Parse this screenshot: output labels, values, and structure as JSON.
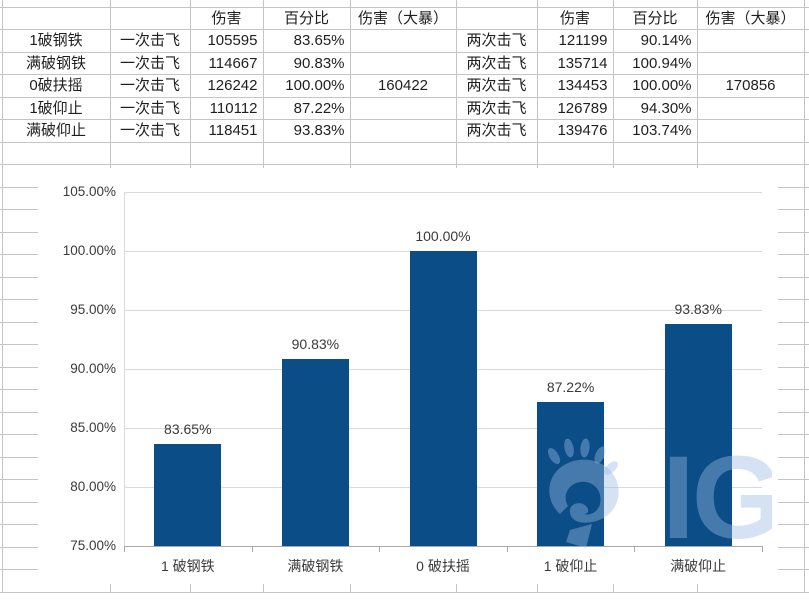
{
  "table": {
    "column_headers": [
      "",
      "",
      "伤害",
      "百分比",
      "伤害（大暴）",
      "",
      "伤害",
      "百分比",
      "伤害（大暴）"
    ],
    "rows": [
      [
        "1破钢铁",
        "一次击飞",
        "105595",
        "83.65%",
        "",
        "两次击飞",
        "121199",
        "90.14%",
        ""
      ],
      [
        "满破钢铁",
        "一次击飞",
        "114667",
        "90.83%",
        "",
        "两次击飞",
        "135714",
        "100.94%",
        ""
      ],
      [
        "0破扶摇",
        "一次击飞",
        "126242",
        "100.00%",
        "160422",
        "两次击飞",
        "134453",
        "100.00%",
        "170856"
      ],
      [
        "1破仰止",
        "一次击飞",
        "110112",
        "87.22%",
        "",
        "两次击飞",
        "126789",
        "94.30%",
        ""
      ],
      [
        "满破仰止",
        "一次击飞",
        "118451",
        "93.83%",
        "",
        "两次击飞",
        "139476",
        "103.74%",
        ""
      ]
    ]
  },
  "chart_data": {
    "type": "bar",
    "title": "",
    "xlabel": "",
    "ylabel": "",
    "categories": [
      "1 破钢铁",
      "满破钢铁",
      "0 破扶摇",
      "1 破仰止",
      "满破仰止"
    ],
    "values": [
      83.65,
      90.83,
      100.0,
      87.22,
      93.83
    ],
    "data_labels": [
      "83.65%",
      "90.83%",
      "100.00%",
      "87.22%",
      "93.83%"
    ],
    "ylim": [
      75,
      105
    ],
    "ytick_step": 5,
    "ytick_labels": [
      "105.00%",
      "100.00%",
      "95.00%",
      "90.00%",
      "85.00%",
      "80.00%",
      "75.00%"
    ],
    "grid": true,
    "legend": false,
    "bar_color": "#0b4d86"
  },
  "watermark": {
    "text": "IG",
    "icon": "bear-paw-icon",
    "color": "rgba(152,186,226,0.42)"
  }
}
